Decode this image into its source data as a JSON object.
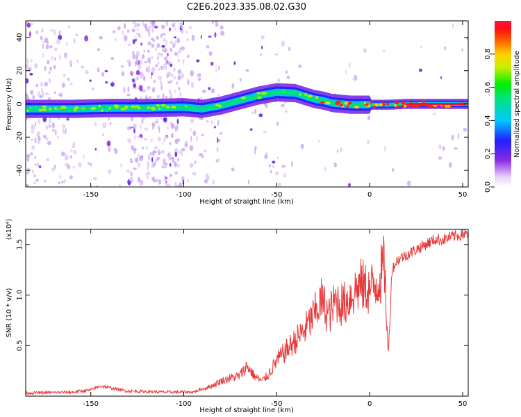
{
  "title": "C2E6.2023.335.08.02.G30",
  "chart_data": [
    {
      "type": "heatmap",
      "xlabel": "Height of straight line (km)",
      "ylabel": "Frequency (Hz)",
      "xlim": [
        -185,
        53
      ],
      "ylim": [
        -50,
        50
      ],
      "xticks": [
        -150,
        -100,
        -50,
        0,
        50
      ],
      "yticks": [
        -40,
        -20,
        0,
        20,
        40
      ],
      "colorbar": {
        "label": "Normalized spectral amplitude",
        "range": [
          0,
          1
        ],
        "ticks": [
          "0.0",
          "0.2",
          "0.4",
          "0.6",
          "0.8"
        ],
        "tick_values": [
          0,
          0.2,
          0.4,
          0.6,
          0.8
        ]
      },
      "ridge": {
        "x": [
          -185,
          -160,
          -140,
          -120,
          -100,
          -90,
          -80,
          -70,
          -60,
          -50,
          -40,
          -30,
          -25,
          -20,
          -10,
          0,
          10,
          20,
          52
        ],
        "y": [
          -3,
          -3,
          -2.5,
          -2.5,
          -2,
          -3,
          -1,
          2,
          5,
          7,
          6.5,
          3,
          2,
          0.5,
          -0.5,
          -0.5,
          -0.5,
          0,
          0
        ]
      }
    },
    {
      "type": "line",
      "xlabel": "Height of straight line (km)",
      "ylabel": "SNR (10 * v/v)",
      "y_multiplier": "(x10⁴)",
      "xlim": [
        -185,
        53
      ],
      "ylim": [
        0,
        1.65
      ],
      "xticks": [
        -150,
        -100,
        -50,
        0,
        50
      ],
      "yticks": [
        0.5,
        1.0,
        1.5
      ],
      "series": [
        {
          "color": "#e8393a",
          "x": [
            -185,
            -160,
            -150,
            -145,
            -130,
            -110,
            -95,
            -85,
            -80,
            -75,
            -70,
            -66,
            -62,
            -58,
            -55,
            -50,
            -45,
            -40,
            -35,
            -30,
            -26,
            -22,
            -18,
            -14,
            -10,
            -5,
            0,
            5,
            8,
            10,
            12,
            15,
            20,
            25,
            30,
            35,
            40,
            45,
            50,
            53
          ],
          "y": [
            0.03,
            0.04,
            0.06,
            0.1,
            0.05,
            0.04,
            0.04,
            0.1,
            0.15,
            0.18,
            0.2,
            0.3,
            0.2,
            0.15,
            0.2,
            0.35,
            0.45,
            0.55,
            0.65,
            0.8,
            0.95,
            0.8,
            0.95,
            0.9,
            1.0,
            1.1,
            1.05,
            1.15,
            1.3,
            0.4,
            1.25,
            1.35,
            1.4,
            1.45,
            1.5,
            1.55,
            1.55,
            1.58,
            1.6,
            1.6
          ]
        }
      ]
    }
  ]
}
